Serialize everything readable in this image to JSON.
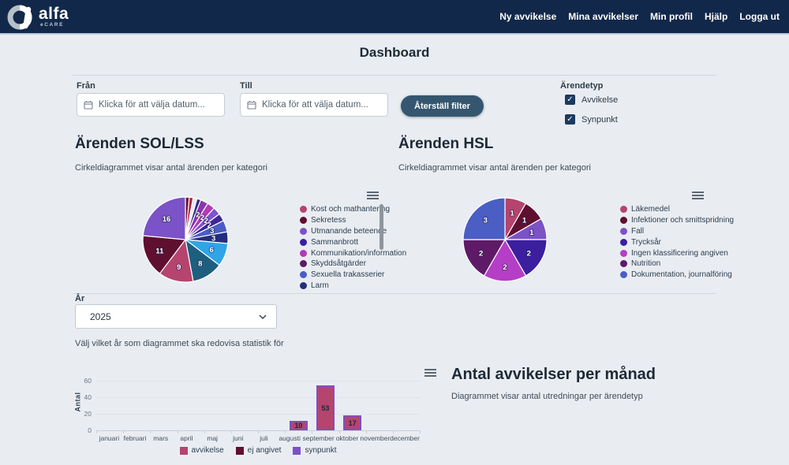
{
  "colors": {
    "header_bg": "#12284a",
    "page_bg": "#e9edf2",
    "button_bg": "#35566f",
    "checkbox_bg": "#1d3a5f",
    "heading_text": "#1d2936"
  },
  "icons": {
    "check_glyph": "✓",
    "calendar": "calendar-icon",
    "chevron": "chevron-down-icon",
    "menu": "hamburger-menu-icon"
  },
  "header": {
    "brand": "alfa",
    "brand_sub": "eCARE",
    "nav": [
      {
        "id": "ny-avvikelse",
        "label": "Ny avvikelse"
      },
      {
        "id": "mina-avvikelser",
        "label": "Mina avvikelser"
      },
      {
        "id": "min-profil",
        "label": "Min profil"
      },
      {
        "id": "hjalp",
        "label": "Hjälp"
      },
      {
        "id": "logga-ut",
        "label": "Logga ut"
      }
    ]
  },
  "page_title": "Dashboard",
  "filters": {
    "from_label": "Från",
    "to_label": "Till",
    "date_placeholder": "Klicka för att välja datum...",
    "reset_button": "Återställ filter",
    "type_label": "Ärendetyp",
    "checkboxes": [
      {
        "label": "Avvikelse",
        "checked": true
      },
      {
        "label": "Synpunkt",
        "checked": true
      }
    ]
  },
  "year_filter": {
    "label": "År",
    "value": "2025",
    "helper": "Välj vilket år som diagrammet ska redovisa statistik för"
  },
  "chart_data": [
    {
      "type": "pie",
      "title": "Ärenden SOL/LSS",
      "subtitle": "Cirkeldiagrammet visar antal ärenden per kategori",
      "legend_position": "right",
      "legend_scrollable": true,
      "label_min": 2,
      "legend": [
        {
          "label": "Kost och mathantering",
          "color": "#b5446e"
        },
        {
          "label": "Sekretess",
          "color": "#5f0f2f"
        },
        {
          "label": "Utmanande beteende",
          "color": "#7b52c7"
        },
        {
          "label": "Sammanbrott",
          "color": "#3b1f9e"
        },
        {
          "label": "Kommunikation/information",
          "color": "#b23ab6"
        },
        {
          "label": "Skyddsåtgärder",
          "color": "#5e1a67"
        },
        {
          "label": "Sexuella trakasserier",
          "color": "#4a5ec4"
        },
        {
          "label": "Larm",
          "color": "#242e7e"
        }
      ],
      "slices": [
        {
          "value": 1,
          "color": "#6e1030"
        },
        {
          "value": 1,
          "color": "#b02445"
        },
        {
          "value": 1,
          "color": "#ece7f2"
        },
        {
          "value": 1,
          "color": "#272f86"
        },
        {
          "value": 2,
          "color": "#8c35b0"
        },
        {
          "value": 2,
          "color": "#b23ab6"
        },
        {
          "value": 2,
          "color": "#7d55cf"
        },
        {
          "value": 2,
          "color": "#3f2798"
        },
        {
          "value": 3,
          "color": "#4a5ec4"
        },
        {
          "value": 3,
          "color": "#242e7e"
        },
        {
          "value": 6,
          "color": "#2fa4e7"
        },
        {
          "value": 8,
          "color": "#1d5f7e"
        },
        {
          "value": 9,
          "color": "#b5446e"
        },
        {
          "value": 11,
          "color": "#5f0f2f"
        },
        {
          "value": 16,
          "color": "#7b52c7"
        }
      ]
    },
    {
      "type": "pie",
      "title": "Ärenden HSL",
      "subtitle": "Cirkeldiagrammet visar antal ärenden per kategori",
      "legend_position": "right",
      "legend_scrollable": false,
      "label_min": 1,
      "legend": [
        {
          "label": "Läkemedel",
          "color": "#b5446e"
        },
        {
          "label": "Infektioner och smittspridning",
          "color": "#5f0f2f"
        },
        {
          "label": "Fall",
          "color": "#7b52c7"
        },
        {
          "label": "Trycksår",
          "color": "#3b1f9e"
        },
        {
          "label": "Ingen klassificering angiven",
          "color": "#b53ec6"
        },
        {
          "label": "Nutrition",
          "color": "#5e1a67"
        },
        {
          "label": "Dokumentation, journalföring",
          "color": "#4a5ec4"
        }
      ],
      "slices": [
        {
          "value": 1,
          "color": "#b5446e"
        },
        {
          "value": 1,
          "color": "#5f0f2f"
        },
        {
          "value": 1,
          "color": "#7b52c7"
        },
        {
          "value": 2,
          "color": "#3b1f9e"
        },
        {
          "value": 2,
          "color": "#b53ec6"
        },
        {
          "value": 2,
          "color": "#5e1a67"
        },
        {
          "value": 3,
          "color": "#4a5ec4"
        }
      ]
    },
    {
      "type": "bar",
      "title": "Antal avvikelser per månad",
      "subtitle": "Diagrammet visar antal utredningar per ärendetyp",
      "ylabel": "Antal",
      "ylim": [
        0,
        60
      ],
      "yticks": [
        0,
        20,
        40,
        60
      ],
      "stacked": true,
      "legend_position": "bottom",
      "categories": [
        "januari",
        "februari",
        "mars",
        "april",
        "maj",
        "juni",
        "juli",
        "augusti",
        "september",
        "oktober",
        "november",
        "december"
      ],
      "series": [
        {
          "name": "avvikelse",
          "color": "#b5446e",
          "values": [
            0,
            0,
            0,
            0,
            0,
            0,
            0,
            10,
            53,
            17,
            0,
            0
          ]
        },
        {
          "name": "ej angivet",
          "color": "#5f0f2f",
          "values": [
            0,
            0,
            0,
            0,
            0,
            0,
            0,
            0,
            0,
            0,
            0,
            0
          ]
        },
        {
          "name": "synpunkt",
          "color": "#7b52c7",
          "values": [
            0,
            0,
            0,
            0,
            0,
            0,
            0,
            1,
            1,
            1,
            0,
            0
          ]
        }
      ],
      "bar_labels": [
        "",
        "",
        "",
        "",
        "",
        "",
        "",
        "10",
        "53",
        "17",
        "",
        ""
      ]
    }
  ]
}
